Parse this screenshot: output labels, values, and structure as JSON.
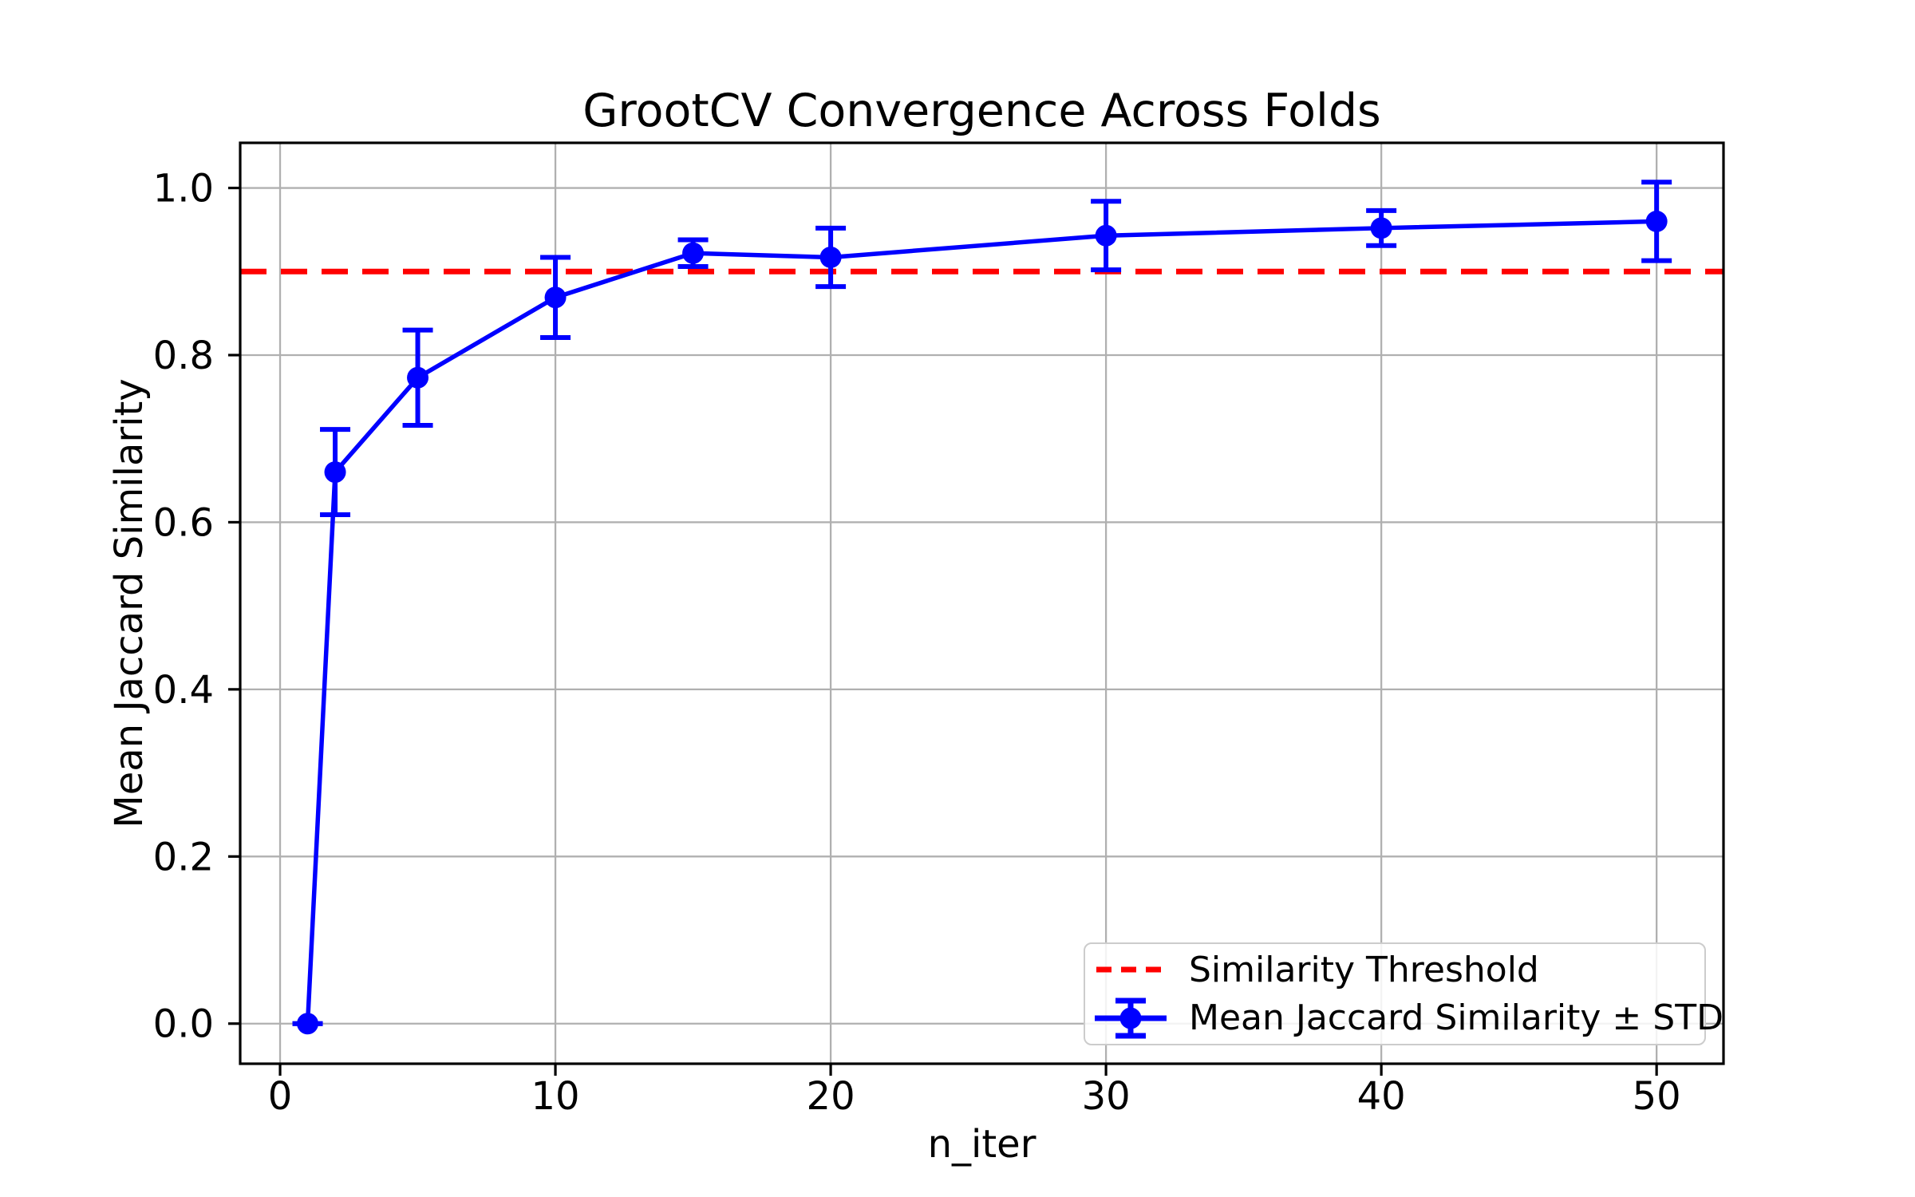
{
  "chart_data": {
    "type": "line",
    "title": "GrootCV Convergence Across Folds",
    "xlabel": "n_iter",
    "ylabel": "Mean Jaccard Similarity",
    "x": [
      1,
      2,
      5,
      10,
      15,
      20,
      30,
      40,
      50
    ],
    "series": [
      {
        "name": "Mean Jaccard Similarity ± STD",
        "values": [
          0.0,
          0.66,
          0.773,
          0.869,
          0.922,
          0.917,
          0.943,
          0.952,
          0.96
        ],
        "std": [
          0.0,
          0.051,
          0.057,
          0.048,
          0.016,
          0.035,
          0.041,
          0.021,
          0.047
        ],
        "color": "#0000ff",
        "marker": "circle"
      }
    ],
    "threshold": {
      "label": "Similarity Threshold",
      "value": 0.9,
      "color": "#ff0000",
      "linestyle": "dashed"
    },
    "x_ticks": [
      {
        "value": 0,
        "label": "0"
      },
      {
        "value": 10,
        "label": "10"
      },
      {
        "value": 20,
        "label": "20"
      },
      {
        "value": 30,
        "label": "30"
      },
      {
        "value": 40,
        "label": "40"
      },
      {
        "value": 50,
        "label": "50"
      }
    ],
    "y_ticks": [
      {
        "value": 0.0,
        "label": "0.0"
      },
      {
        "value": 0.2,
        "label": "0.2"
      },
      {
        "value": 0.4,
        "label": "0.4"
      },
      {
        "value": 0.6,
        "label": "0.6"
      },
      {
        "value": 0.8,
        "label": "0.8"
      },
      {
        "value": 1.0,
        "label": "1.0"
      }
    ],
    "xlim": [
      -1.45,
      52.43
    ],
    "ylim": [
      -0.048,
      1.054
    ],
    "grid": true,
    "legend_position": "lower right",
    "colors": {
      "grid": "#b0b0b0",
      "spine": "#000000",
      "text": "#000000",
      "background": "#ffffff",
      "legend_border": "#cccccc"
    }
  }
}
